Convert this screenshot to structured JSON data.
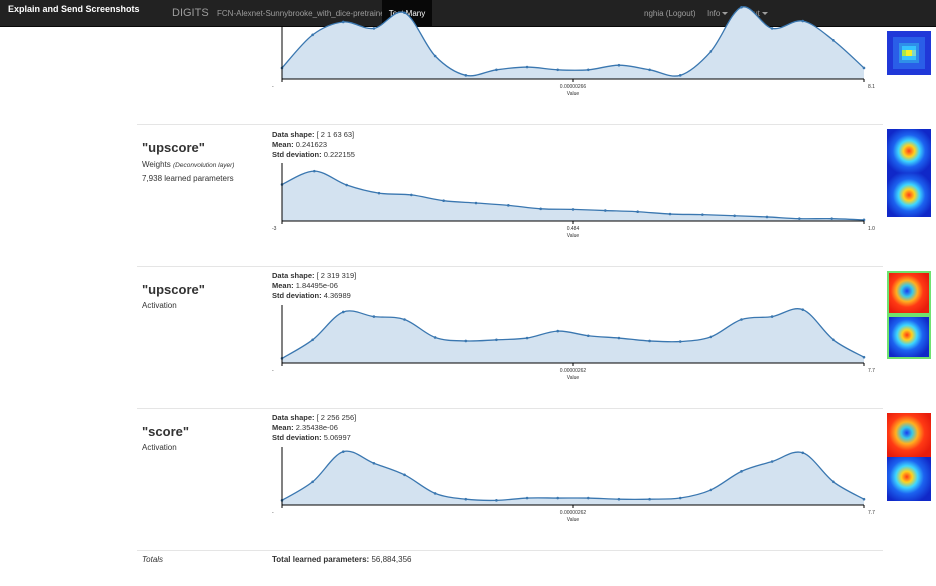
{
  "navbar": {
    "extension_button": "Explain and Send Screenshots",
    "brand": "DIGITS",
    "job_name": "FCN-Alexnet-Sunnybrooke_with_dice-pretrained",
    "active_tab": "Test Many",
    "user": "nghia (Logout)",
    "info_menu": "Info",
    "about_menu": "About"
  },
  "layers": [
    {
      "name": "",
      "type": "",
      "type_detail": "",
      "params": "",
      "shape_label": "",
      "shape_value": "",
      "mean_label": "",
      "mean_value": "",
      "std_label": "",
      "std_value": "",
      "chart": {
        "xmin": "-",
        "xmid": "0.00000266",
        "xmax": "8.1",
        "xlabel": "Value"
      }
    },
    {
      "name": "\"upscore\"",
      "type": "Weights",
      "type_detail": "(Deconvolution layer)",
      "params": "7,938 learned parameters",
      "shape_label": "Data shape:",
      "shape_value": "[ 2 1 63 63]",
      "mean_label": "Mean:",
      "mean_value": "0.241623",
      "std_label": "Std deviation:",
      "std_value": "0.222155",
      "chart": {
        "xmin": "-3",
        "xmid": "0.484",
        "xmax": "1.0",
        "xlabel": "Value"
      }
    },
    {
      "name": "\"upscore\"",
      "type": "Activation",
      "type_detail": "",
      "params": "",
      "shape_label": "Data shape:",
      "shape_value": "[ 2 319 319]",
      "mean_label": "Mean:",
      "mean_value": "1.84495e-06",
      "std_label": "Std deviation:",
      "std_value": "4.36989",
      "chart": {
        "xmin": "-",
        "xmid": "0.00000262",
        "xmax": "7.7",
        "xlabel": "Value"
      }
    },
    {
      "name": "\"score\"",
      "type": "Activation",
      "type_detail": "",
      "params": "",
      "shape_label": "Data shape:",
      "shape_value": "[ 2 256 256]",
      "mean_label": "Mean:",
      "mean_value": "2.35438e-06",
      "std_label": "Std deviation:",
      "std_value": "5.06997",
      "chart": {
        "xmin": "-",
        "xmid": "0.00000262",
        "xmax": "7.7",
        "xlabel": "Value"
      }
    }
  ],
  "totals": {
    "label": "Totals",
    "params_label": "Total learned parameters:",
    "params_value": "56,884,356"
  },
  "chart_data": [
    {
      "type": "area",
      "y": [
        0.12,
        0.48,
        0.62,
        0.55,
        0.72,
        0.25,
        0.04,
        0.1,
        0.13,
        0.1,
        0.1,
        0.15,
        0.1,
        0.04,
        0.3,
        0.78,
        0.55,
        0.63,
        0.42,
        0.12
      ],
      "values_clipped_at_top": true
    },
    {
      "type": "area",
      "y": [
        0.63,
        0.86,
        0.62,
        0.48,
        0.45,
        0.35,
        0.31,
        0.27,
        0.21,
        0.2,
        0.18,
        0.16,
        0.12,
        0.11,
        0.09,
        0.07,
        0.04,
        0.04,
        0.02
      ]
    },
    {
      "type": "area",
      "y": [
        0.08,
        0.4,
        0.88,
        0.8,
        0.75,
        0.44,
        0.38,
        0.4,
        0.43,
        0.55,
        0.47,
        0.43,
        0.38,
        0.37,
        0.45,
        0.75,
        0.8,
        0.92,
        0.4,
        0.1
      ]
    },
    {
      "type": "area",
      "y": [
        0.08,
        0.4,
        0.92,
        0.72,
        0.52,
        0.2,
        0.1,
        0.08,
        0.12,
        0.12,
        0.12,
        0.1,
        0.1,
        0.12,
        0.26,
        0.58,
        0.75,
        0.9,
        0.4,
        0.1
      ]
    }
  ],
  "thumbnails": [
    [
      "blue-grid"
    ],
    [
      "blue-red-blob",
      "blue-red-blob"
    ],
    [
      "red-blue-blob",
      "blue-red-blob"
    ],
    [
      "red-blue-blob",
      "blue-red-blob"
    ]
  ]
}
